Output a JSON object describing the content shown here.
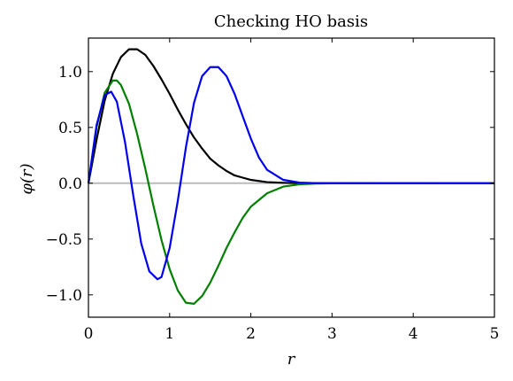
{
  "chart_data": {
    "type": "line",
    "title": "Checking HO basis",
    "xlabel": "r",
    "ylabel": "φ(r)",
    "xlim": [
      0,
      5
    ],
    "ylim": [
      -1.2,
      1.3
    ],
    "xticks": [
      0,
      1,
      2,
      3,
      4,
      5
    ],
    "xtick_labels": [
      "0",
      "1",
      "2",
      "3",
      "4",
      "5"
    ],
    "yticks": [
      -1.0,
      -0.5,
      0.0,
      0.5,
      1.0
    ],
    "ytick_labels": [
      "−1.0",
      "−0.5",
      "0.0",
      "0.5",
      "1.0"
    ],
    "grid": false,
    "legend": "none",
    "zero_line": {
      "y": 0,
      "color": "#bbbbbb"
    },
    "series": [
      {
        "color": "#000000",
        "x": [
          0,
          0.1,
          0.2,
          0.3,
          0.4,
          0.5,
          0.6,
          0.7,
          0.8,
          0.9,
          1.0,
          1.1,
          1.2,
          1.3,
          1.4,
          1.5,
          1.6,
          1.7,
          1.8,
          1.9,
          2.0,
          2.2,
          2.4,
          2.6,
          2.8,
          3.0,
          5.0
        ],
        "y": [
          0,
          0.39,
          0.74,
          0.98,
          1.13,
          1.2,
          1.2,
          1.15,
          1.05,
          0.93,
          0.8,
          0.66,
          0.53,
          0.41,
          0.31,
          0.22,
          0.16,
          0.11,
          0.07,
          0.05,
          0.03,
          0.01,
          0.004,
          0.001,
          0.0003,
          0.0001,
          0
        ]
      },
      {
        "color": "#008000",
        "x": [
          0,
          0.1,
          0.2,
          0.3,
          0.35,
          0.4,
          0.5,
          0.6,
          0.7,
          0.8,
          0.9,
          1.0,
          1.1,
          1.2,
          1.3,
          1.4,
          1.5,
          1.6,
          1.7,
          1.8,
          1.9,
          2.0,
          2.2,
          2.4,
          2.6,
          2.8,
          3.0,
          5.0
        ],
        "y": [
          0,
          0.5,
          0.81,
          0.92,
          0.92,
          0.88,
          0.71,
          0.44,
          0.13,
          -0.2,
          -0.51,
          -0.77,
          -0.96,
          -1.07,
          -1.08,
          -1.01,
          -0.89,
          -0.74,
          -0.58,
          -0.44,
          -0.31,
          -0.21,
          -0.09,
          -0.03,
          -0.01,
          -0.003,
          -0.001,
          0
        ]
      },
      {
        "color": "#0000ee",
        "x": [
          0,
          0.1,
          0.2,
          0.28,
          0.35,
          0.45,
          0.55,
          0.65,
          0.75,
          0.85,
          0.9,
          1.0,
          1.1,
          1.2,
          1.3,
          1.4,
          1.5,
          1.6,
          1.7,
          1.8,
          1.9,
          2.0,
          2.1,
          2.2,
          2.4,
          2.6,
          2.8,
          3.0,
          5.0
        ],
        "y": [
          0,
          0.52,
          0.79,
          0.82,
          0.73,
          0.37,
          -0.1,
          -0.54,
          -0.79,
          -0.86,
          -0.84,
          -0.58,
          -0.16,
          0.32,
          0.72,
          0.96,
          1.04,
          1.04,
          0.96,
          0.8,
          0.6,
          0.4,
          0.23,
          0.12,
          0.03,
          0.006,
          0.001,
          0.0002,
          0
        ]
      }
    ]
  }
}
